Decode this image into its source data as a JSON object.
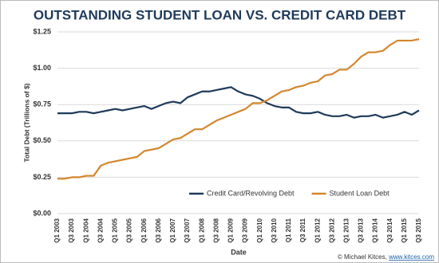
{
  "chart_data": {
    "type": "line",
    "title": "OUTSTANDING STUDENT LOAN VS. CREDIT CARD DEBT",
    "y_label": "Total Debt (Trillions of $)",
    "x_label": "Date",
    "categories": [
      "Q1 2003",
      null,
      "Q3 2003",
      null,
      "Q1 2004",
      null,
      "Q3 2004",
      null,
      "Q1 2005",
      null,
      "Q3 2005",
      null,
      "Q1 2006",
      null,
      "Q3 2006",
      null,
      "Q1 2007",
      null,
      "Q3 2007",
      null,
      "Q1 2008",
      null,
      "Q3 2008",
      null,
      "Q1 2009",
      null,
      "Q3 2009",
      null,
      "Q1 2010",
      null,
      "Q3 2010",
      null,
      "Q1 2011",
      null,
      "Q3 2011",
      null,
      "Q1 2012",
      null,
      "Q3 2012",
      null,
      "Q1 2013",
      null,
      "Q3 2013",
      null,
      "Q1 2014",
      null,
      "Q3 2014",
      null,
      "Q1 2015",
      null,
      "Q3 2015"
    ],
    "series": [
      {
        "name": "Credit Card/Revolving Debt",
        "color": "#1f3a5a",
        "values": [
          0.69,
          0.69,
          0.69,
          0.7,
          0.7,
          0.69,
          0.7,
          0.71,
          0.72,
          0.71,
          0.72,
          0.73,
          0.74,
          0.72,
          0.74,
          0.76,
          0.77,
          0.76,
          0.8,
          0.82,
          0.84,
          0.84,
          0.85,
          0.86,
          0.87,
          0.84,
          0.82,
          0.81,
          0.79,
          0.76,
          0.74,
          0.73,
          0.73,
          0.7,
          0.69,
          0.69,
          0.7,
          0.68,
          0.67,
          0.67,
          0.68,
          0.66,
          0.67,
          0.67,
          0.68,
          0.66,
          0.67,
          0.68,
          0.7,
          0.68,
          0.71
        ]
      },
      {
        "name": "Student Loan Debt",
        "color": "#d4862e",
        "values": [
          0.24,
          0.24,
          0.25,
          0.25,
          0.26,
          0.26,
          0.33,
          0.35,
          0.36,
          0.37,
          0.38,
          0.39,
          0.43,
          0.44,
          0.45,
          0.48,
          0.51,
          0.52,
          0.55,
          0.58,
          0.58,
          0.61,
          0.64,
          0.66,
          0.68,
          0.7,
          0.72,
          0.76,
          0.76,
          0.78,
          0.81,
          0.84,
          0.85,
          0.87,
          0.88,
          0.9,
          0.91,
          0.95,
          0.96,
          0.99,
          0.99,
          1.03,
          1.08,
          1.11,
          1.11,
          1.12,
          1.16,
          1.19,
          1.19,
          1.19,
          1.2
        ]
      }
    ],
    "ylim": [
      0,
      1.25
    ],
    "yticks": [
      {
        "value": 0,
        "label": "$0.00"
      },
      {
        "value": 0.25,
        "label": "$0.25"
      },
      {
        "value": 0.5,
        "label": "$0.50"
      },
      {
        "value": 0.75,
        "label": "$0.75"
      },
      {
        "value": 1,
        "label": "$1.00"
      },
      {
        "value": 1.25,
        "label": "$1.25"
      }
    ],
    "grid": true,
    "legend": "lower-right"
  },
  "footer": {
    "credit": "© Michael Kitces,",
    "link": "www.kitces.com"
  }
}
